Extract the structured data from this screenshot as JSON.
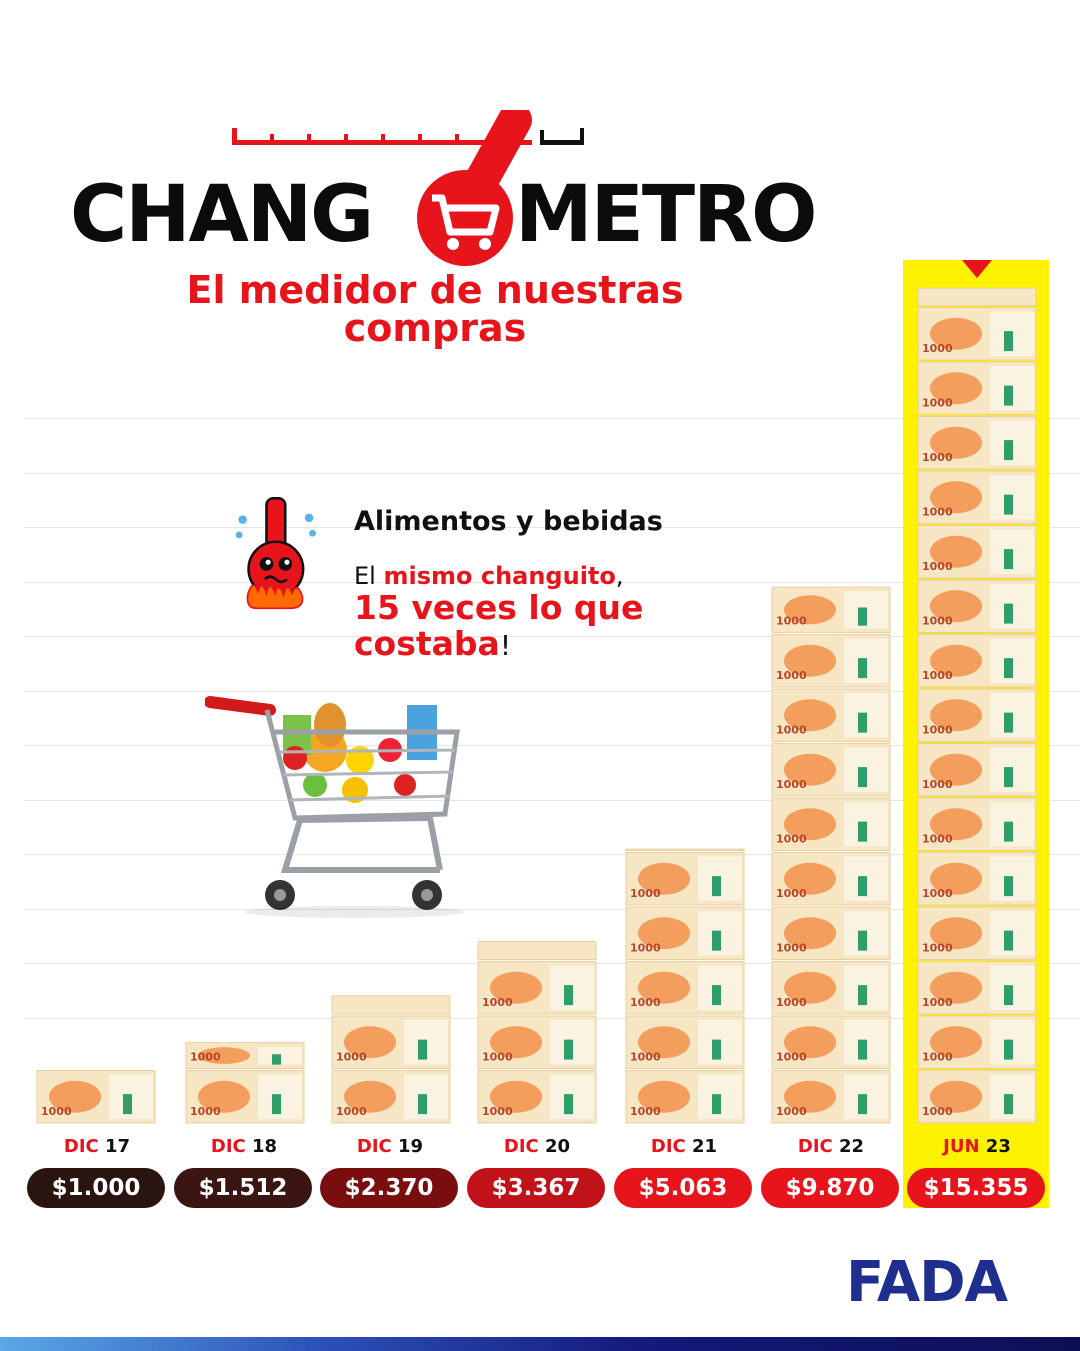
{
  "header": {
    "title_left": "CHANG",
    "title_right": "METRO",
    "subtitle_line1": "El medidor de nuestras",
    "subtitle_line2": "compras"
  },
  "info": {
    "heading": "Alimentos y bebidas",
    "msg_prefix": "El ",
    "msg_highlight": "mismo changuito",
    "msg_comma": ",",
    "msg_big1": "15 veces lo que",
    "msg_big2": "costaba",
    "msg_end": "!"
  },
  "banknote_label": "1000",
  "brand": {
    "name": "FADA"
  },
  "colors": {
    "accent_red": "#e8141c",
    "highlight_yellow": "#fff200",
    "brand_blue": "#1f2f8f"
  },
  "chart_data": {
    "type": "bar",
    "unit_note": "each banknote = $1000",
    "categories": [
      {
        "month": "DIC",
        "year": "17"
      },
      {
        "month": "DIC",
        "year": "18"
      },
      {
        "month": "DIC",
        "year": "19"
      },
      {
        "month": "DIC",
        "year": "20"
      },
      {
        "month": "DIC",
        "year": "21"
      },
      {
        "month": "DIC",
        "year": "22"
      },
      {
        "month": "JUN",
        "year": "23"
      }
    ],
    "values": [
      1000,
      1512,
      2370,
      3367,
      5063,
      9870,
      15355
    ],
    "value_labels": [
      "$1.000",
      "$1.512",
      "$2.370",
      "$3.367",
      "$5.063",
      "$9.870",
      "$15.355"
    ],
    "pill_colors": [
      "#2a1410",
      "#3a1512",
      "#7a0d0d",
      "#c01218",
      "#e8141c",
      "#e8141c",
      "#e8141c"
    ],
    "highlighted_index": 6
  }
}
